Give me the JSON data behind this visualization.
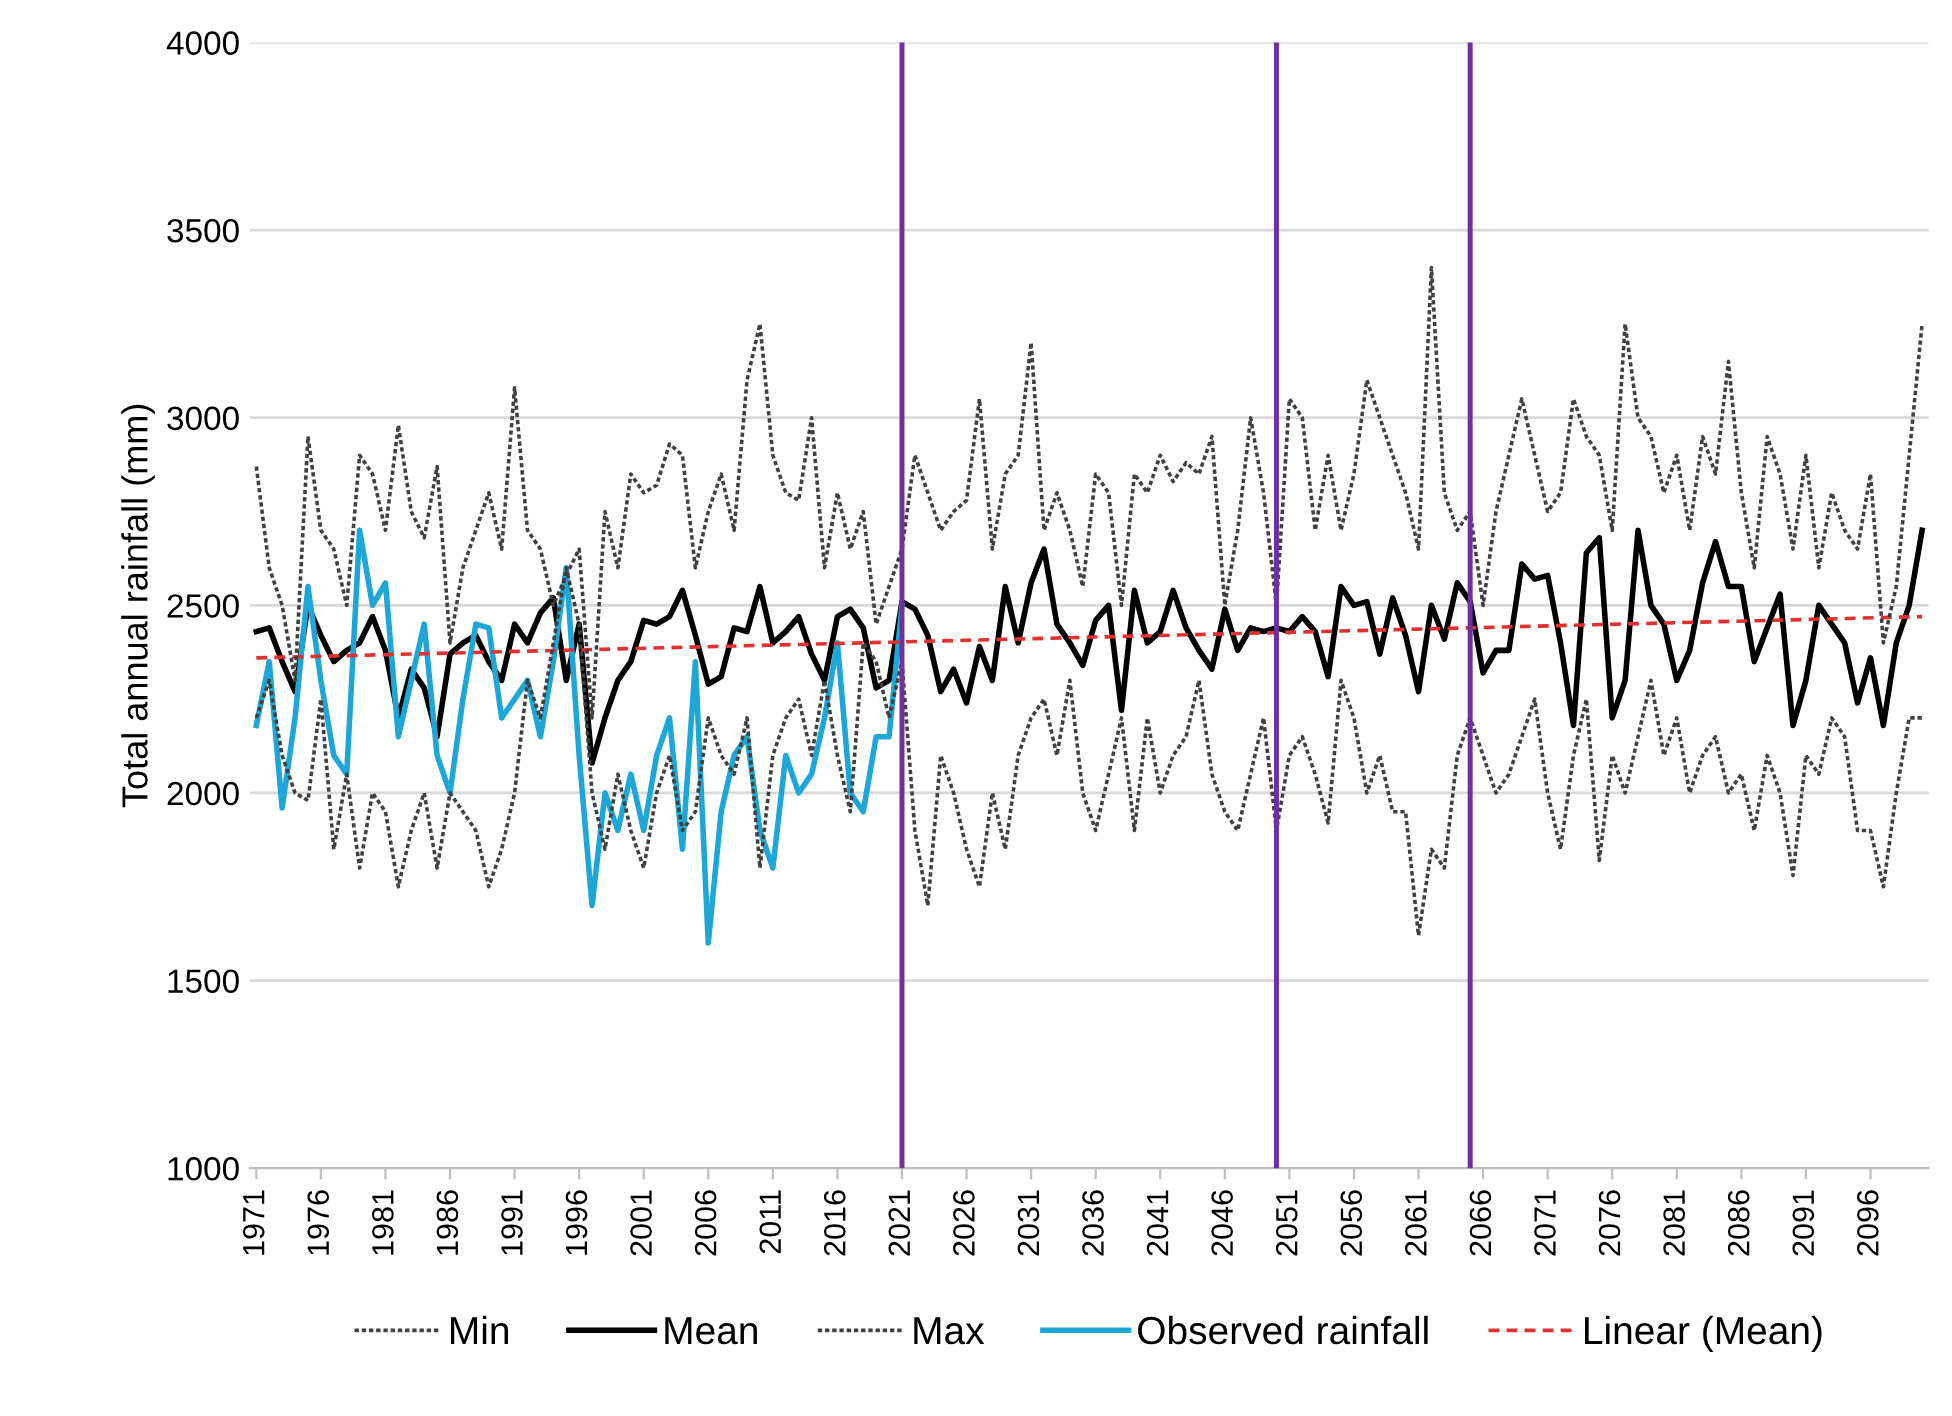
{
  "chart_data": {
    "type": "line",
    "ylabel": "Total annual rainfall (mm)",
    "x": [
      1971,
      1972,
      1973,
      1974,
      1975,
      1976,
      1977,
      1978,
      1979,
      1980,
      1981,
      1982,
      1983,
      1984,
      1985,
      1986,
      1987,
      1988,
      1989,
      1990,
      1991,
      1992,
      1993,
      1994,
      1995,
      1996,
      1997,
      1998,
      1999,
      2000,
      2001,
      2002,
      2003,
      2004,
      2005,
      2006,
      2007,
      2008,
      2009,
      2010,
      2011,
      2012,
      2013,
      2014,
      2015,
      2016,
      2017,
      2018,
      2019,
      2020,
      2021,
      2022,
      2023,
      2024,
      2025,
      2026,
      2027,
      2028,
      2029,
      2030,
      2031,
      2032,
      2033,
      2034,
      2035,
      2036,
      2037,
      2038,
      2039,
      2040,
      2041,
      2042,
      2043,
      2044,
      2045,
      2046,
      2047,
      2048,
      2049,
      2050,
      2051,
      2052,
      2053,
      2054,
      2055,
      2056,
      2057,
      2058,
      2059,
      2060,
      2061,
      2062,
      2063,
      2064,
      2065,
      2066,
      2067,
      2068,
      2069,
      2070,
      2071,
      2072,
      2073,
      2074,
      2075,
      2076,
      2077,
      2078,
      2079,
      2080,
      2081,
      2082,
      2083,
      2084,
      2085,
      2086,
      2087,
      2088,
      2089,
      2090,
      2091,
      2092,
      2093,
      2094,
      2095,
      2096,
      2097,
      2098,
      2099,
      2100
    ],
    "series": [
      {
        "name": "Min",
        "color": "#404040",
        "line_style": "dotted",
        "values": [
          2200,
          2300,
          2100,
          2000,
          1980,
          2250,
          1850,
          2050,
          1800,
          2000,
          1950,
          1750,
          1900,
          2000,
          1800,
          2000,
          1950,
          1900,
          1750,
          1850,
          2000,
          2300,
          2200,
          2400,
          2600,
          2450,
          2000,
          1850,
          2050,
          1900,
          1800,
          2000,
          2100,
          1900,
          1950,
          2200,
          2100,
          2050,
          2200,
          1800,
          2100,
          2200,
          2250,
          2100,
          2300,
          2100,
          1950,
          2400,
          2350,
          2200,
          2350,
          1900,
          1700,
          2100,
          2000,
          1850,
          1750,
          2000,
          1850,
          2100,
          2200,
          2250,
          2100,
          2300,
          2000,
          1900,
          2050,
          2200,
          1900,
          2200,
          2000,
          2100,
          2150,
          2300,
          2050,
          1950,
          1900,
          2050,
          2200,
          1900,
          2100,
          2150,
          2050,
          1920,
          2300,
          2200,
          2000,
          2100,
          1950,
          1950,
          1620,
          1850,
          1800,
          2100,
          2200,
          2100,
          2000,
          2050,
          2150,
          2250,
          2000,
          1850,
          2100,
          2250,
          1820,
          2100,
          2000,
          2150,
          2300,
          2100,
          2200,
          2000,
          2100,
          2150,
          2000,
          2050,
          1900,
          2100,
          2000,
          1780,
          2100,
          2050,
          2200,
          2150,
          1900,
          1900,
          1750,
          2000,
          2200,
          2200
        ]
      },
      {
        "name": "Mean",
        "color": "#000000",
        "line_style": "solid",
        "values": [
          2430,
          2440,
          2350,
          2270,
          2500,
          2420,
          2350,
          2380,
          2400,
          2470,
          2380,
          2200,
          2330,
          2280,
          2150,
          2370,
          2400,
          2420,
          2350,
          2300,
          2450,
          2400,
          2480,
          2520,
          2300,
          2450,
          2080,
          2200,
          2300,
          2350,
          2460,
          2450,
          2470,
          2540,
          2420,
          2290,
          2310,
          2440,
          2430,
          2550,
          2400,
          2430,
          2470,
          2370,
          2300,
          2470,
          2490,
          2440,
          2280,
          2300,
          2510,
          2490,
          2420,
          2270,
          2330,
          2240,
          2390,
          2300,
          2550,
          2400,
          2560,
          2650,
          2450,
          2400,
          2340,
          2460,
          2500,
          2220,
          2540,
          2400,
          2430,
          2540,
          2440,
          2380,
          2330,
          2490,
          2380,
          2440,
          2430,
          2440,
          2430,
          2470,
          2430,
          2310,
          2550,
          2500,
          2510,
          2370,
          2520,
          2420,
          2270,
          2500,
          2410,
          2560,
          2510,
          2320,
          2380,
          2380,
          2610,
          2570,
          2580,
          2400,
          2180,
          2640,
          2680,
          2200,
          2300,
          2700,
          2500,
          2450,
          2300,
          2380,
          2560,
          2670,
          2550,
          2550,
          2350,
          2440,
          2530,
          2180,
          2300,
          2500,
          2450,
          2400,
          2240,
          2360,
          2180,
          2400,
          2500,
          2700
        ]
      },
      {
        "name": "Max",
        "color": "#404040",
        "line_style": "dotted",
        "values": [
          2870,
          2600,
          2500,
          2300,
          2950,
          2700,
          2650,
          2500,
          2900,
          2850,
          2700,
          2980,
          2750,
          2680,
          2870,
          2400,
          2600,
          2700,
          2800,
          2650,
          3080,
          2700,
          2650,
          2500,
          2580,
          2650,
          2200,
          2750,
          2600,
          2850,
          2800,
          2820,
          2930,
          2900,
          2600,
          2750,
          2850,
          2700,
          3100,
          3250,
          2900,
          2800,
          2780,
          3000,
          2600,
          2800,
          2650,
          2750,
          2450,
          2550,
          2650,
          2900,
          2800,
          2700,
          2750,
          2780,
          3050,
          2650,
          2850,
          2900,
          3200,
          2700,
          2800,
          2700,
          2550,
          2850,
          2800,
          2500,
          2850,
          2800,
          2900,
          2830,
          2880,
          2850,
          2950,
          2500,
          2700,
          3000,
          2800,
          2500,
          3050,
          3000,
          2700,
          2900,
          2700,
          2850,
          3100,
          3000,
          2900,
          2800,
          2650,
          3400,
          2800,
          2700,
          2750,
          2500,
          2750,
          2900,
          3050,
          2900,
          2750,
          2800,
          3050,
          2950,
          2900,
          2700,
          3250,
          3000,
          2950,
          2800,
          2900,
          2700,
          2950,
          2850,
          3150,
          2800,
          2600,
          2950,
          2850,
          2650,
          2900,
          2600,
          2800,
          2700,
          2650,
          2850,
          2400,
          2550,
          2900,
          3250
        ]
      },
      {
        "name": "Observed rainfall",
        "color": "#1ea7d6",
        "line_style": "solid",
        "x": [
          1971,
          1972,
          1973,
          1974,
          1975,
          1976,
          1977,
          1978,
          1979,
          1980,
          1981,
          1982,
          1983,
          1984,
          1985,
          1986,
          1987,
          1988,
          1989,
          1990,
          1991,
          1992,
          1993,
          1994,
          1995,
          1996,
          1997,
          1998,
          1999,
          2000,
          2001,
          2002,
          2003,
          2004,
          2005,
          2006,
          2007,
          2008,
          2009,
          2010,
          2011,
          2012,
          2013,
          2014,
          2015,
          2016,
          2017,
          2018,
          2019,
          2020,
          2021
        ],
        "values": [
          2180,
          2350,
          1960,
          2200,
          2550,
          2300,
          2100,
          2050,
          2700,
          2500,
          2560,
          2150,
          2300,
          2450,
          2100,
          2000,
          2250,
          2450,
          2440,
          2200,
          2250,
          2300,
          2150,
          2350,
          2600,
          2100,
          1700,
          2000,
          1900,
          2050,
          1900,
          2100,
          2200,
          1850,
          2350,
          1600,
          1950,
          2100,
          2150,
          1900,
          1800,
          2100,
          2000,
          2050,
          2200,
          2400,
          2000,
          1950,
          2150,
          2150,
          2500
        ]
      },
      {
        "name": "Linear (Mean)",
        "color": "#e03030",
        "line_style": "dashed",
        "x": [
          1971,
          2100
        ],
        "values": [
          2360,
          2470
        ]
      }
    ],
    "ref_lines": [
      {
        "axis": "x",
        "value": 2021,
        "color": "#7030a0"
      },
      {
        "axis": "x",
        "value": 2050,
        "color": "#7030a0"
      },
      {
        "axis": "x",
        "value": 2065,
        "color": "#7030a0"
      }
    ],
    "xlim": [
      1970.5,
      2100.5
    ],
    "xticks": [
      1971,
      1976,
      1981,
      1986,
      1991,
      1996,
      2001,
      2006,
      2011,
      2016,
      2021,
      2026,
      2031,
      2036,
      2041,
      2046,
      2051,
      2056,
      2061,
      2066,
      2071,
      2076,
      2081,
      2086,
      2091,
      2096
    ],
    "ylim": [
      1000,
      4000
    ],
    "yticks": [
      1000,
      1500,
      2000,
      2500,
      3000,
      3500,
      4000
    ],
    "grid": "y",
    "legend": "bottom"
  }
}
